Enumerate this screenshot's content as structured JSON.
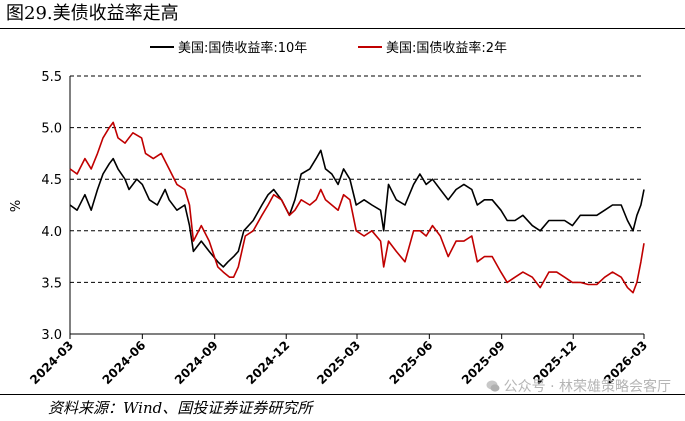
{
  "title": "图29.美债收益率走高",
  "source": "资料来源：Wind、国投证券证券研究所",
  "watermark": "公众号 · 林荣雄策略会客厅",
  "chart_data": {
    "type": "line",
    "ylabel": "%",
    "ylim": [
      3.0,
      5.5
    ],
    "yticks": [
      3.0,
      3.5,
      4.0,
      4.5,
      5.0,
      5.5
    ],
    "ytick_labels": [
      "3.0",
      "3.5",
      "4.0",
      "4.5",
      "5.0",
      "5.5"
    ],
    "xlim": [
      "2024-03",
      "2026-03"
    ],
    "xticks": [
      "2024-03",
      "2024-06",
      "2024-09",
      "2024-12",
      "2025-03",
      "2025-06",
      "2025-09",
      "2025-12",
      "2026-03"
    ],
    "grid": "horizontal dashed",
    "legend_position": "top",
    "series": [
      {
        "name": "美国:国债收益率:10年",
        "color": "#000000",
        "points": [
          [
            "2024-03-01",
            4.25
          ],
          [
            "2024-03-10",
            4.2
          ],
          [
            "2024-03-20",
            4.35
          ],
          [
            "2024-03-28",
            4.2
          ],
          [
            "2024-04-05",
            4.4
          ],
          [
            "2024-04-12",
            4.55
          ],
          [
            "2024-04-20",
            4.65
          ],
          [
            "2024-04-25",
            4.7
          ],
          [
            "2024-05-01",
            4.6
          ],
          [
            "2024-05-10",
            4.5
          ],
          [
            "2024-05-15",
            4.4
          ],
          [
            "2024-05-25",
            4.5
          ],
          [
            "2024-06-01",
            4.45
          ],
          [
            "2024-06-10",
            4.3
          ],
          [
            "2024-06-20",
            4.25
          ],
          [
            "2024-06-30",
            4.4
          ],
          [
            "2024-07-05",
            4.3
          ],
          [
            "2024-07-15",
            4.2
          ],
          [
            "2024-07-25",
            4.25
          ],
          [
            "2024-07-31",
            4.05
          ],
          [
            "2024-08-05",
            3.8
          ],
          [
            "2024-08-15",
            3.9
          ],
          [
            "2024-08-25",
            3.8
          ],
          [
            "2024-09-05",
            3.7
          ],
          [
            "2024-09-12",
            3.65
          ],
          [
            "2024-09-18",
            3.7
          ],
          [
            "2024-09-25",
            3.75
          ],
          [
            "2024-10-01",
            3.8
          ],
          [
            "2024-10-08",
            4.0
          ],
          [
            "2024-10-20",
            4.1
          ],
          [
            "2024-10-31",
            4.25
          ],
          [
            "2024-11-08",
            4.35
          ],
          [
            "2024-11-15",
            4.4
          ],
          [
            "2024-11-25",
            4.3
          ],
          [
            "2024-12-05",
            4.15
          ],
          [
            "2024-12-12",
            4.3
          ],
          [
            "2024-12-20",
            4.55
          ],
          [
            "2024-12-31",
            4.6
          ],
          [
            "2025-01-08",
            4.7
          ],
          [
            "2025-01-14",
            4.78
          ],
          [
            "2025-01-20",
            4.6
          ],
          [
            "2025-01-28",
            4.55
          ],
          [
            "2025-02-05",
            4.45
          ],
          [
            "2025-02-12",
            4.6
          ],
          [
            "2025-02-20",
            4.5
          ],
          [
            "2025-02-28",
            4.25
          ],
          [
            "2025-03-10",
            4.3
          ],
          [
            "2025-03-20",
            4.25
          ],
          [
            "2025-03-31",
            4.2
          ],
          [
            "2025-04-04",
            4.0
          ],
          [
            "2025-04-10",
            4.45
          ],
          [
            "2025-04-20",
            4.3
          ],
          [
            "2025-05-01",
            4.25
          ],
          [
            "2025-05-12",
            4.45
          ],
          [
            "2025-05-20",
            4.55
          ],
          [
            "2025-05-28",
            4.45
          ],
          [
            "2025-06-05",
            4.5
          ],
          [
            "2025-06-15",
            4.4
          ],
          [
            "2025-06-25",
            4.3
          ],
          [
            "2025-07-05",
            4.4
          ],
          [
            "2025-07-15",
            4.45
          ],
          [
            "2025-07-25",
            4.4
          ],
          [
            "2025-08-01",
            4.25
          ],
          [
            "2025-08-10",
            4.3
          ],
          [
            "2025-08-20",
            4.3
          ],
          [
            "2025-08-31",
            4.2
          ],
          [
            "2025-09-08",
            4.1
          ],
          [
            "2025-09-18",
            4.1
          ],
          [
            "2025-09-28",
            4.15
          ],
          [
            "2025-10-10",
            4.05
          ],
          [
            "2025-10-20",
            4.0
          ],
          [
            "2025-10-31",
            4.1
          ],
          [
            "2025-11-10",
            4.1
          ],
          [
            "2025-11-20",
            4.1
          ],
          [
            "2025-11-30",
            4.05
          ],
          [
            "2025-12-10",
            4.15
          ],
          [
            "2025-12-20",
            4.15
          ],
          [
            "2025-12-31",
            4.15
          ],
          [
            "2026-01-10",
            4.2
          ],
          [
            "2026-01-20",
            4.25
          ],
          [
            "2026-01-31",
            4.25
          ],
          [
            "2026-02-08",
            4.1
          ],
          [
            "2026-02-15",
            4.0
          ],
          [
            "2026-02-20",
            4.15
          ],
          [
            "2026-02-25",
            4.25
          ],
          [
            "2026-03-01",
            4.4
          ]
        ]
      },
      {
        "name": "美国:国债收益率:2年",
        "color": "#c00000",
        "points": [
          [
            "2024-03-01",
            4.6
          ],
          [
            "2024-03-10",
            4.55
          ],
          [
            "2024-03-20",
            4.7
          ],
          [
            "2024-03-28",
            4.6
          ],
          [
            "2024-04-05",
            4.75
          ],
          [
            "2024-04-12",
            4.9
          ],
          [
            "2024-04-20",
            5.0
          ],
          [
            "2024-04-25",
            5.05
          ],
          [
            "2024-05-01",
            4.9
          ],
          [
            "2024-05-10",
            4.85
          ],
          [
            "2024-05-20",
            4.95
          ],
          [
            "2024-05-31",
            4.9
          ],
          [
            "2024-06-05",
            4.75
          ],
          [
            "2024-06-15",
            4.7
          ],
          [
            "2024-06-25",
            4.75
          ],
          [
            "2024-07-05",
            4.6
          ],
          [
            "2024-07-15",
            4.45
          ],
          [
            "2024-07-25",
            4.4
          ],
          [
            "2024-07-31",
            4.25
          ],
          [
            "2024-08-05",
            3.9
          ],
          [
            "2024-08-15",
            4.05
          ],
          [
            "2024-08-25",
            3.9
          ],
          [
            "2024-09-05",
            3.65
          ],
          [
            "2024-09-12",
            3.6
          ],
          [
            "2024-09-20",
            3.55
          ],
          [
            "2024-09-25",
            3.55
          ],
          [
            "2024-10-01",
            3.65
          ],
          [
            "2024-10-10",
            3.95
          ],
          [
            "2024-10-20",
            4.0
          ],
          [
            "2024-10-31",
            4.15
          ],
          [
            "2024-11-08",
            4.25
          ],
          [
            "2024-11-15",
            4.35
          ],
          [
            "2024-11-25",
            4.3
          ],
          [
            "2024-12-05",
            4.15
          ],
          [
            "2024-12-12",
            4.2
          ],
          [
            "2024-12-20",
            4.3
          ],
          [
            "2024-12-31",
            4.25
          ],
          [
            "2025-01-08",
            4.3
          ],
          [
            "2025-01-14",
            4.4
          ],
          [
            "2025-01-20",
            4.3
          ],
          [
            "2025-01-28",
            4.25
          ],
          [
            "2025-02-05",
            4.2
          ],
          [
            "2025-02-12",
            4.35
          ],
          [
            "2025-02-20",
            4.3
          ],
          [
            "2025-02-28",
            4.0
          ],
          [
            "2025-03-10",
            3.95
          ],
          [
            "2025-03-20",
            4.0
          ],
          [
            "2025-03-31",
            3.9
          ],
          [
            "2025-04-04",
            3.65
          ],
          [
            "2025-04-10",
            3.9
          ],
          [
            "2025-04-20",
            3.8
          ],
          [
            "2025-05-01",
            3.7
          ],
          [
            "2025-05-12",
            4.0
          ],
          [
            "2025-05-20",
            4.0
          ],
          [
            "2025-05-28",
            3.95
          ],
          [
            "2025-06-05",
            4.05
          ],
          [
            "2025-06-15",
            3.95
          ],
          [
            "2025-06-25",
            3.75
          ],
          [
            "2025-07-05",
            3.9
          ],
          [
            "2025-07-15",
            3.9
          ],
          [
            "2025-07-25",
            3.95
          ],
          [
            "2025-08-01",
            3.7
          ],
          [
            "2025-08-10",
            3.75
          ],
          [
            "2025-08-20",
            3.75
          ],
          [
            "2025-08-31",
            3.6
          ],
          [
            "2025-09-08",
            3.5
          ],
          [
            "2025-09-18",
            3.55
          ],
          [
            "2025-09-28",
            3.6
          ],
          [
            "2025-10-10",
            3.55
          ],
          [
            "2025-10-20",
            3.45
          ],
          [
            "2025-10-31",
            3.6
          ],
          [
            "2025-11-10",
            3.6
          ],
          [
            "2025-11-20",
            3.55
          ],
          [
            "2025-11-30",
            3.5
          ],
          [
            "2025-12-10",
            3.5
          ],
          [
            "2025-12-20",
            3.48
          ],
          [
            "2025-12-31",
            3.48
          ],
          [
            "2026-01-10",
            3.55
          ],
          [
            "2026-01-20",
            3.6
          ],
          [
            "2026-01-31",
            3.55
          ],
          [
            "2026-02-08",
            3.45
          ],
          [
            "2026-02-15",
            3.4
          ],
          [
            "2026-02-20",
            3.5
          ],
          [
            "2026-02-25",
            3.7
          ],
          [
            "2026-03-01",
            3.88
          ]
        ]
      }
    ]
  }
}
